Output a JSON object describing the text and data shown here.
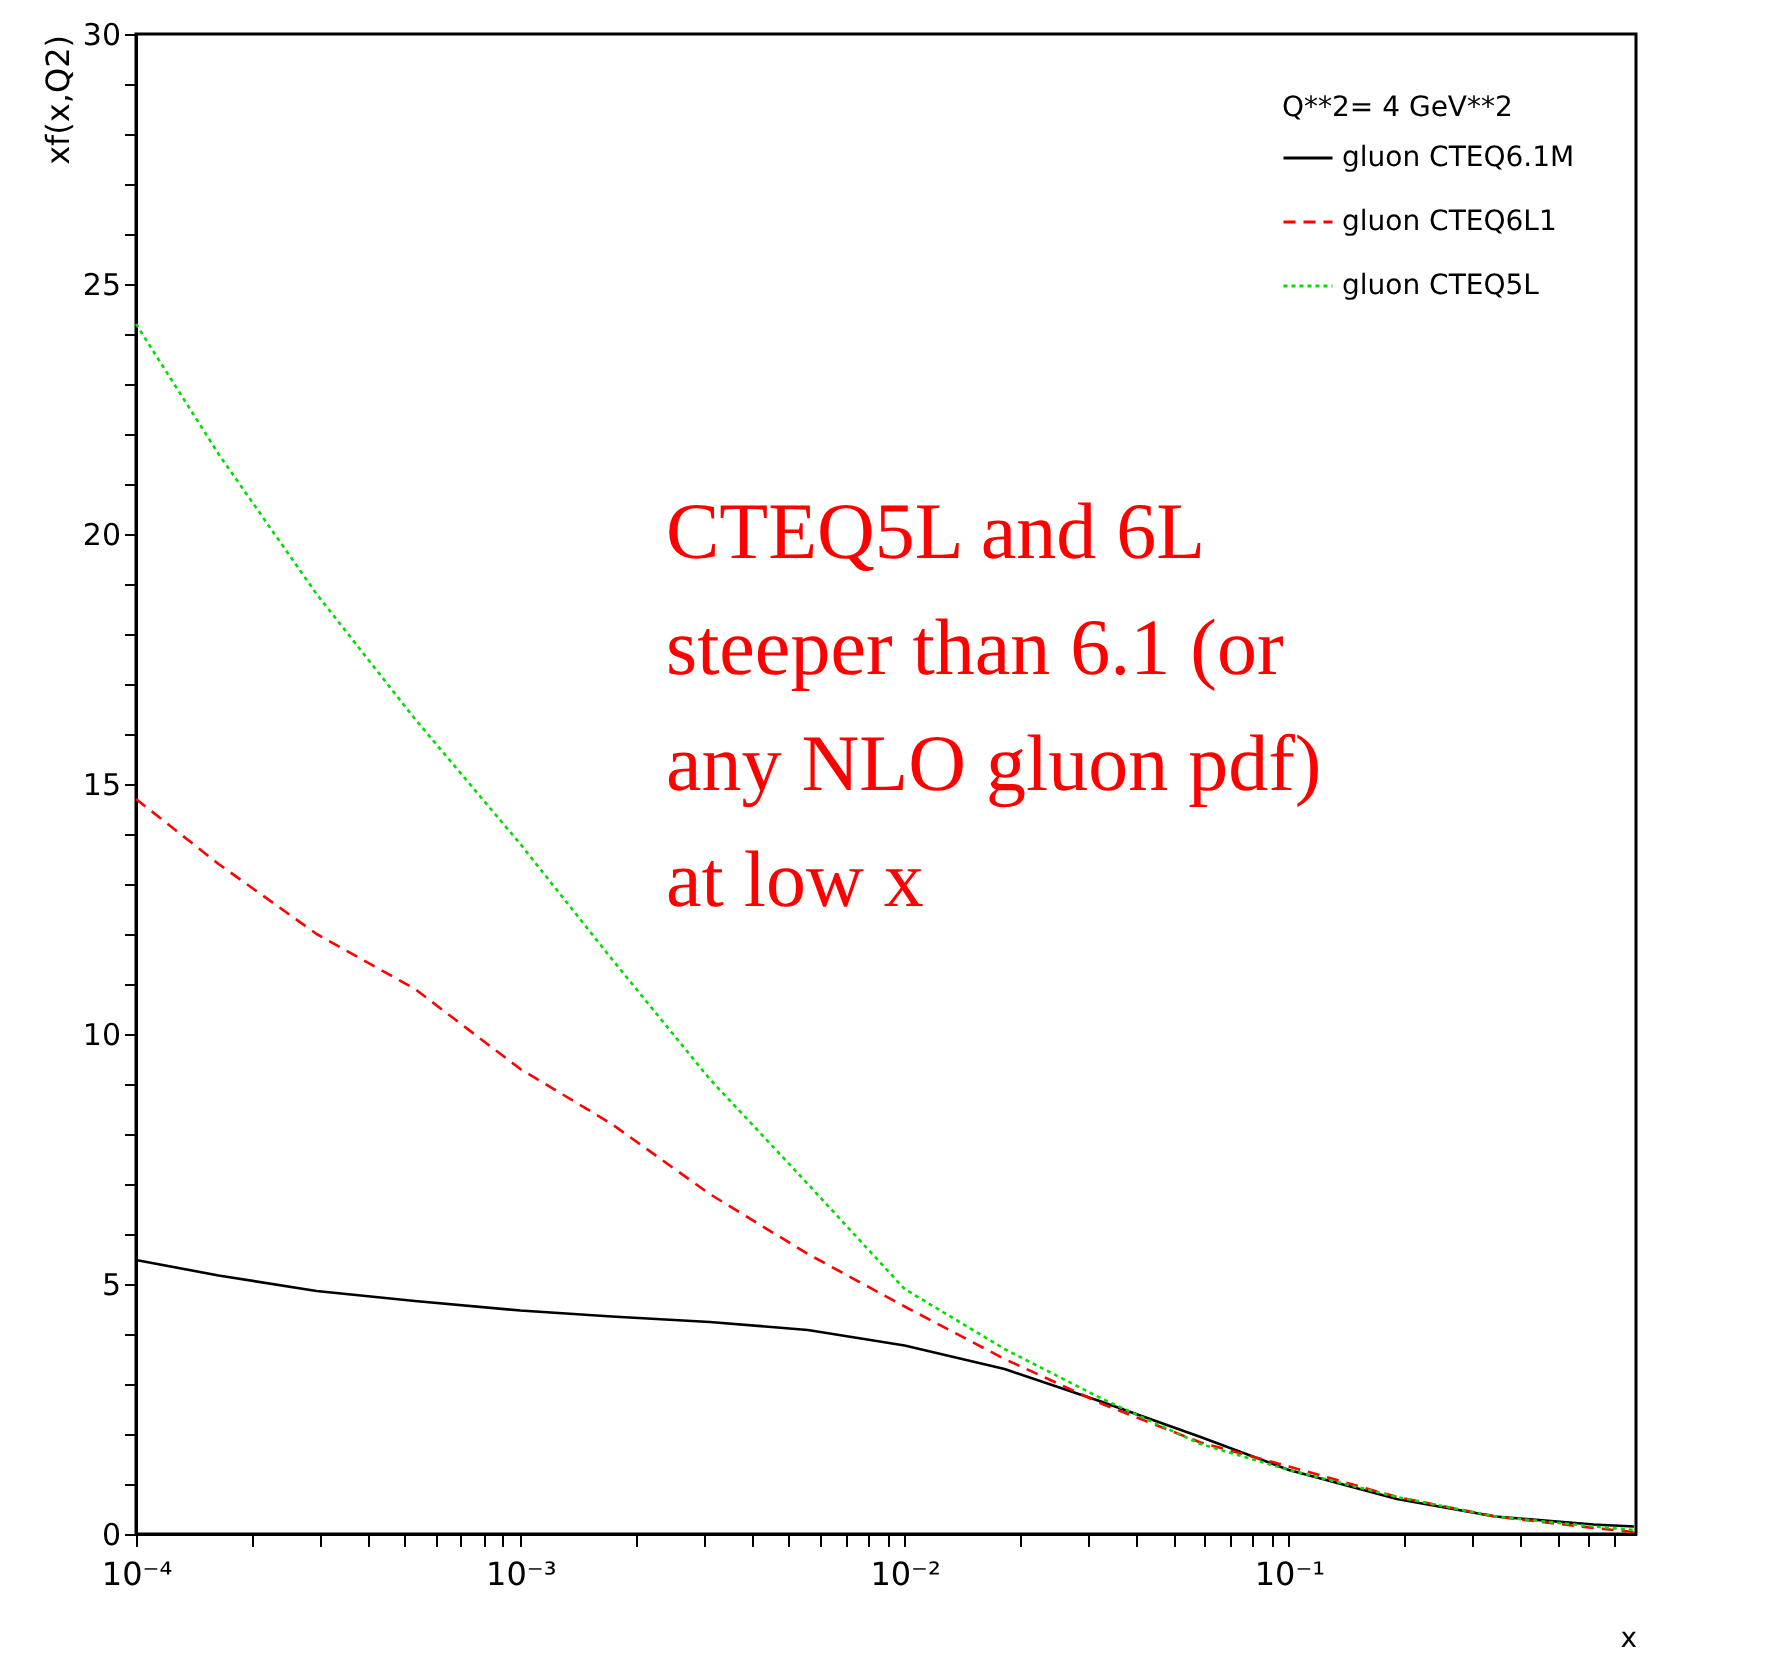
{
  "chart_data": {
    "type": "line",
    "xlabel": "x",
    "ylabel": "xf(x,Q2)",
    "legend_title": "Q**2= 4 GeV**2",
    "x": [
      0.0001,
      0.000164,
      0.000295,
      0.000532,
      0.001,
      0.00173,
      0.00311,
      0.0056,
      0.01,
      0.0182,
      0.0327,
      0.0589,
      0.1,
      0.191,
      0.344,
      0.62,
      0.79
    ],
    "series": [
      {
        "name": "gluon CTEQ6.1M",
        "color": "#000000",
        "line_style": "solid",
        "values": [
          5.48,
          5.17,
          4.86,
          4.66,
          4.47,
          4.35,
          4.24,
          4.08,
          3.77,
          3.3,
          2.64,
          1.94,
          1.28,
          0.7,
          0.35,
          0.19,
          0.15
        ]
      },
      {
        "name": "gluon CTEQ6L1",
        "color": "#ff0000",
        "line_style": "dashed",
        "values": [
          14.7,
          13.4,
          12.0,
          10.9,
          9.3,
          8.2,
          6.8,
          5.6,
          4.55,
          3.5,
          2.6,
          1.83,
          1.35,
          0.74,
          0.35,
          0.12,
          0.04
        ]
      },
      {
        "name": "gluon CTEQ5L",
        "color": "#00dd00",
        "line_style": "dotted",
        "values": [
          24.2,
          21.6,
          18.8,
          16.3,
          13.8,
          11.5,
          9.1,
          7.0,
          4.9,
          3.7,
          2.7,
          1.8,
          1.28,
          0.74,
          0.35,
          0.15,
          0.08
        ]
      }
    ],
    "xlim": [
      0.0001,
      0.8
    ],
    "log": "x",
    "xticks": [
      {
        "value": 0.0001,
        "label": "10⁻⁴"
      },
      {
        "value": 0.0002,
        "label": null
      },
      {
        "value": 0.0003,
        "label": null
      },
      {
        "value": 0.0004,
        "label": null
      },
      {
        "value": 0.0005,
        "label": null
      },
      {
        "value": 0.0006,
        "label": null
      },
      {
        "value": 0.0007,
        "label": null
      },
      {
        "value": 0.0008,
        "label": null
      },
      {
        "value": 0.0009,
        "label": null
      },
      {
        "value": 0.001,
        "label": "10⁻³"
      },
      {
        "value": 0.002,
        "label": null
      },
      {
        "value": 0.003,
        "label": null
      },
      {
        "value": 0.004,
        "label": null
      },
      {
        "value": 0.005,
        "label": null
      },
      {
        "value": 0.006,
        "label": null
      },
      {
        "value": 0.007,
        "label": null
      },
      {
        "value": 0.008,
        "label": null
      },
      {
        "value": 0.009,
        "label": null
      },
      {
        "value": 0.01,
        "label": "10⁻²"
      },
      {
        "value": 0.02,
        "label": null
      },
      {
        "value": 0.03,
        "label": null
      },
      {
        "value": 0.04,
        "label": null
      },
      {
        "value": 0.05,
        "label": null
      },
      {
        "value": 0.06,
        "label": null
      },
      {
        "value": 0.07,
        "label": null
      },
      {
        "value": 0.08,
        "label": null
      },
      {
        "value": 0.09,
        "label": null
      },
      {
        "value": 0.1,
        "label": "10⁻¹"
      },
      {
        "value": 0.2,
        "label": null
      },
      {
        "value": 0.3,
        "label": null
      },
      {
        "value": 0.4,
        "label": null
      },
      {
        "value": 0.5,
        "label": null
      },
      {
        "value": 0.6,
        "label": null
      },
      {
        "value": 0.7,
        "label": null
      }
    ],
    "ylim": [
      0,
      30
    ],
    "yticks": [
      0,
      {
        "value": 1,
        "label": null
      },
      {
        "value": 2,
        "label": null
      },
      {
        "value": 3,
        "label": null
      },
      {
        "value": 4,
        "label": null
      },
      5,
      {
        "value": 6,
        "label": null
      },
      {
        "value": 7,
        "label": null
      },
      {
        "value": 8,
        "label": null
      },
      {
        "value": 9,
        "label": null
      },
      10,
      {
        "value": 11,
        "label": null
      },
      {
        "value": 12,
        "label": null
      },
      {
        "value": 13,
        "label": null
      },
      {
        "value": 14,
        "label": null
      },
      15,
      {
        "value": 16,
        "label": null
      },
      {
        "value": 17,
        "label": null
      },
      {
        "value": 18,
        "label": null
      },
      {
        "value": 19,
        "label": null
      },
      20,
      {
        "value": 21,
        "label": null
      },
      {
        "value": 22,
        "label": null
      },
      {
        "value": 23,
        "label": null
      },
      {
        "value": 24,
        "label": null
      },
      25,
      {
        "value": 26,
        "label": null
      },
      {
        "value": 27,
        "label": null
      },
      {
        "value": 28,
        "label": null
      },
      {
        "value": 29,
        "label": null
      },
      30
    ],
    "grid": false,
    "legend": "top right",
    "marker": "none",
    "annotations": [
      "CTEQ5L and 6L\nsteeper than 6.1 (or\nany NLO gluon pdf)\nat low x"
    ]
  }
}
